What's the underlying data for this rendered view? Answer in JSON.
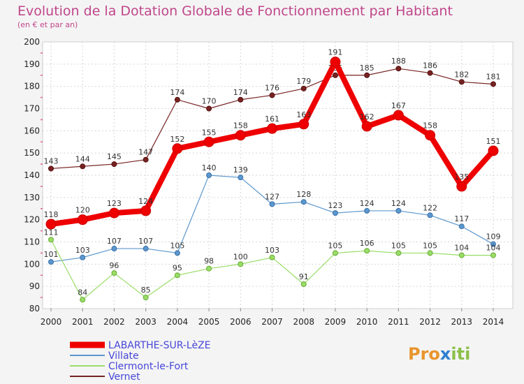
{
  "chart_data": {
    "type": "line",
    "title": "Evolution de la Dotation Globale de Fonctionnement par Habitant",
    "subtitle": "(en € et par an)",
    "x": [
      "2000",
      "2001",
      "2002",
      "2003",
      "2004",
      "2005",
      "2006",
      "2007",
      "2008",
      "2009",
      "2010",
      "2011",
      "2012",
      "2013",
      "2014"
    ],
    "ylim": [
      80,
      200
    ],
    "yticks": [
      "80",
      "90",
      "100",
      "110",
      "120",
      "130",
      "140",
      "150",
      "160",
      "170",
      "180",
      "190",
      "200"
    ],
    "grid": true,
    "legend_position": "bottom-left",
    "series": [
      {
        "name": "LABARTHE-SUR-LèZE",
        "color": "#ee0000",
        "values": [
          118,
          120,
          123,
          124,
          152,
          155,
          158,
          161,
          163,
          191,
          162,
          167,
          158,
          135,
          151
        ],
        "labels": [
          "118",
          "120",
          "123",
          "124",
          "152",
          "155",
          "158",
          "161",
          "163",
          "191",
          "162",
          "167",
          "158",
          "135",
          "151"
        ]
      },
      {
        "name": "Villate",
        "color": "#5b97cc",
        "values": [
          101,
          103,
          107,
          107,
          105,
          140,
          139,
          127,
          128,
          123,
          124,
          124,
          122,
          117,
          109
        ],
        "labels": [
          "101",
          "103",
          "107",
          "107",
          "105",
          "140",
          "139",
          "127",
          "128",
          "123",
          "124",
          "124",
          "122",
          "117",
          "109"
        ]
      },
      {
        "name": "Clermont-le-Fort",
        "color": "#99dd66",
        "values": [
          111,
          84,
          96,
          85,
          95,
          98,
          100,
          103,
          91,
          105,
          106,
          105,
          105,
          104,
          104
        ],
        "labels": [
          "111",
          "84",
          "96",
          "85",
          "95",
          "98",
          "100",
          "103",
          "91",
          "105",
          "106",
          "105",
          "105",
          "104",
          "104"
        ]
      },
      {
        "name": "Vernet",
        "color": "#772222",
        "values": [
          143,
          144,
          145,
          147,
          174,
          170,
          174,
          176,
          179,
          185,
          185,
          188,
          186,
          182,
          181
        ],
        "labels": [
          "143",
          "144",
          "145",
          "147",
          "174",
          "170",
          "174",
          "176",
          "179",
          "185",
          "185",
          "188",
          "186",
          "182",
          "181"
        ]
      }
    ]
  },
  "brand": {
    "prefix": "Pro",
    "x": "x",
    "suffix": "iti"
  }
}
